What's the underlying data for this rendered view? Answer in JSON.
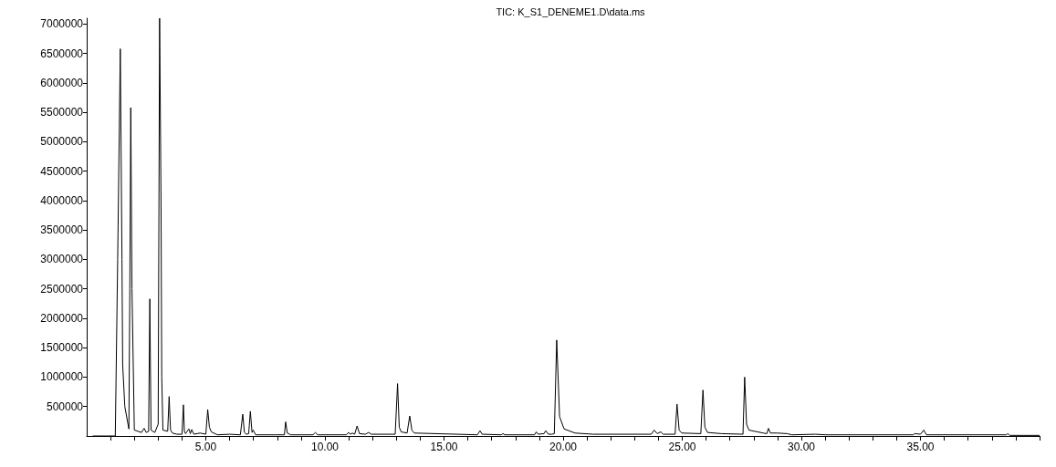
{
  "chart_data": {
    "type": "line",
    "title": "TIC: K_S1_DENEME1.D\\data.ms",
    "color": "#000000",
    "marker": "none",
    "x": [
      0.25,
      1.2,
      1.3,
      1.41,
      1.48,
      1.51,
      1.6,
      1.77,
      1.81,
      1.85,
      1.9,
      2.0,
      2.3,
      2.41,
      2.5,
      2.6,
      2.65,
      2.7,
      2.86,
      3.0,
      3.06,
      3.12,
      3.15,
      3.2,
      3.4,
      3.46,
      3.52,
      3.6,
      3.78,
      4.0,
      4.06,
      4.1,
      4.15,
      4.29,
      4.35,
      4.41,
      4.5,
      4.76,
      5.0,
      5.08,
      5.15,
      5.23,
      5.49,
      6.0,
      6.45,
      6.55,
      6.62,
      6.7,
      6.8,
      6.87,
      6.94,
      6.99,
      7.09,
      7.9,
      8.3,
      8.35,
      8.42,
      8.56,
      9.5,
      9.6,
      9.7,
      10.9,
      10.99,
      11.07,
      11.15,
      11.25,
      11.35,
      11.45,
      11.7,
      11.83,
      11.95,
      12.95,
      13.05,
      13.12,
      13.2,
      13.45,
      13.56,
      13.65,
      13.75,
      16.4,
      16.51,
      16.6,
      17.4,
      17.47,
      17.55,
      18.8,
      18.87,
      18.95,
      19.2,
      19.27,
      19.38,
      19.53,
      19.63,
      19.73,
      19.85,
      20.04,
      20.5,
      21.25,
      23.7,
      23.82,
      23.95,
      24.1,
      24.2,
      24.7,
      24.78,
      24.87,
      24.98,
      25.78,
      25.87,
      25.95,
      26.06,
      26.64,
      27.55,
      27.62,
      27.7,
      27.8,
      28.4,
      28.55,
      28.62,
      28.7,
      28.98,
      29.4,
      29.6,
      30.6,
      31.0,
      34.7,
      34.76,
      35.0,
      35.14,
      35.25,
      38.6,
      38.67,
      38.75,
      40
    ],
    "values": [
      0,
      0,
      3000000,
      6580000,
      3000000,
      1210000,
      500000,
      120000,
      2500000,
      5580000,
      2500000,
      100000,
      60000,
      130000,
      60000,
      80000,
      2330000,
      100000,
      60000,
      200000,
      7100000,
      4000000,
      1000000,
      100000,
      80000,
      670000,
      100000,
      50000,
      30000,
      30000,
      530000,
      80000,
      40000,
      120000,
      40000,
      110000,
      30000,
      50000,
      30000,
      450000,
      150000,
      70000,
      20000,
      30000,
      20000,
      370000,
      60000,
      30000,
      40000,
      420000,
      60000,
      100000,
      20000,
      20000,
      20000,
      240000,
      50000,
      20000,
      20000,
      60000,
      20000,
      20000,
      60000,
      30000,
      50000,
      30000,
      170000,
      40000,
      30000,
      60000,
      30000,
      30000,
      890000,
      150000,
      70000,
      50000,
      340000,
      100000,
      50000,
      20000,
      90000,
      30000,
      20000,
      40000,
      20000,
      20000,
      70000,
      30000,
      40000,
      90000,
      30000,
      30000,
      40000,
      1630000,
      330000,
      120000,
      50000,
      30000,
      30000,
      100000,
      40000,
      70000,
      30000,
      30000,
      540000,
      100000,
      50000,
      40000,
      780000,
      150000,
      60000,
      40000,
      30000,
      1000000,
      200000,
      100000,
      50000,
      40000,
      130000,
      50000,
      50000,
      40000,
      20000,
      30000,
      20000,
      20000,
      40000,
      30000,
      100000,
      20000,
      20000,
      40000,
      10000,
      10000
    ],
    "xlim": [
      0,
      40
    ],
    "xticks": [
      {
        "value": 1,
        "label": null
      },
      {
        "value": 2,
        "label": null
      },
      {
        "value": 3,
        "label": null
      },
      {
        "value": 4,
        "label": null
      },
      {
        "value": 5,
        "label": "5.00"
      },
      {
        "value": 6,
        "label": null
      },
      {
        "value": 7,
        "label": null
      },
      {
        "value": 8,
        "label": null
      },
      {
        "value": 9,
        "label": null
      },
      {
        "value": 10,
        "label": "10.00"
      },
      {
        "value": 11,
        "label": null
      },
      {
        "value": 12,
        "label": null
      },
      {
        "value": 13,
        "label": null
      },
      {
        "value": 14,
        "label": null
      },
      {
        "value": 15,
        "label": "15.00"
      },
      {
        "value": 16,
        "label": null
      },
      {
        "value": 17,
        "label": null
      },
      {
        "value": 18,
        "label": null
      },
      {
        "value": 19,
        "label": null
      },
      {
        "value": 20,
        "label": "20.00"
      },
      {
        "value": 21,
        "label": null
      },
      {
        "value": 22,
        "label": null
      },
      {
        "value": 23,
        "label": null
      },
      {
        "value": 24,
        "label": null
      },
      {
        "value": 25,
        "label": "25.00"
      },
      {
        "value": 26,
        "label": null
      },
      {
        "value": 27,
        "label": null
      },
      {
        "value": 28,
        "label": null
      },
      {
        "value": 29,
        "label": null
      },
      {
        "value": 30,
        "label": "30.00"
      },
      {
        "value": 31,
        "label": null
      },
      {
        "value": 32,
        "label": null
      },
      {
        "value": 33,
        "label": null
      },
      {
        "value": 34,
        "label": null
      },
      {
        "value": 35,
        "label": "35.00"
      },
      {
        "value": 36,
        "label": null
      },
      {
        "value": 37,
        "label": null
      },
      {
        "value": 38,
        "label": null
      },
      {
        "value": 39,
        "label": null
      },
      {
        "value": 40,
        "label": null
      }
    ],
    "ylim": [
      0,
      7100000
    ],
    "yticks": [
      500000,
      1000000,
      1500000,
      2000000,
      2500000,
      3000000,
      3500000,
      4000000,
      4500000,
      5000000,
      5500000,
      6000000,
      6500000,
      7000000
    ]
  }
}
